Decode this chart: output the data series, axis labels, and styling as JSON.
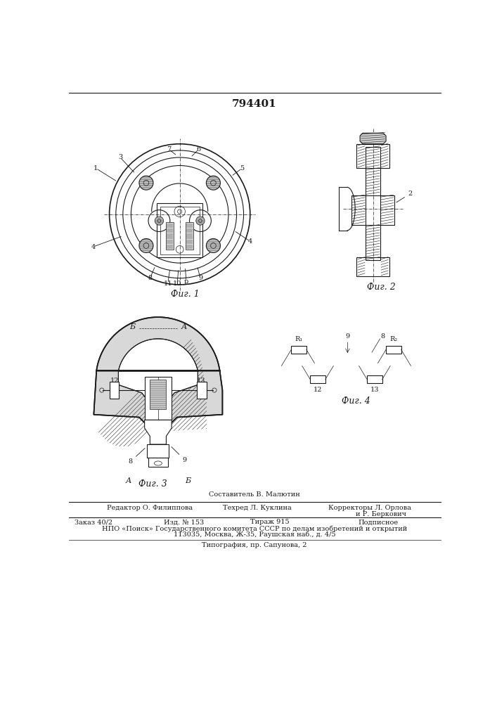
{
  "patent_number": "794401",
  "bg_color": "#ffffff",
  "line_color": "#1a1a1a",
  "fig_width": 7.07,
  "fig_height": 10.0,
  "bottom_text": {
    "composer": "Составитель В. Малютин",
    "editor_label": "Редактор",
    "editor_name": "О. Филиппова",
    "techred_label": "Техред",
    "techred_name": "Л. Куклина",
    "corrector_label": "Корректоры",
    "corrector_name1": "Л. Орлова",
    "corrector_name2": "и Р. Беркович",
    "order": "Заказ 40/2",
    "izd": "Изд. № 153",
    "tirazh": "Тираж 915",
    "podpisnoe": "Подписное",
    "npo_line": "НПО «Поиск» Государственного комитета СССР по делам изобретений и открытий",
    "address": "113035, Москва, Ж-35, Раушская наб., д. 4/5",
    "typography": "Типография, пр. Сапунова, 2"
  },
  "fig1_caption": "Фиг. 1",
  "fig2_caption": "Фиг. 2",
  "fig3_caption": "Фиг. 3",
  "fig4_caption": "Фиг. 4"
}
